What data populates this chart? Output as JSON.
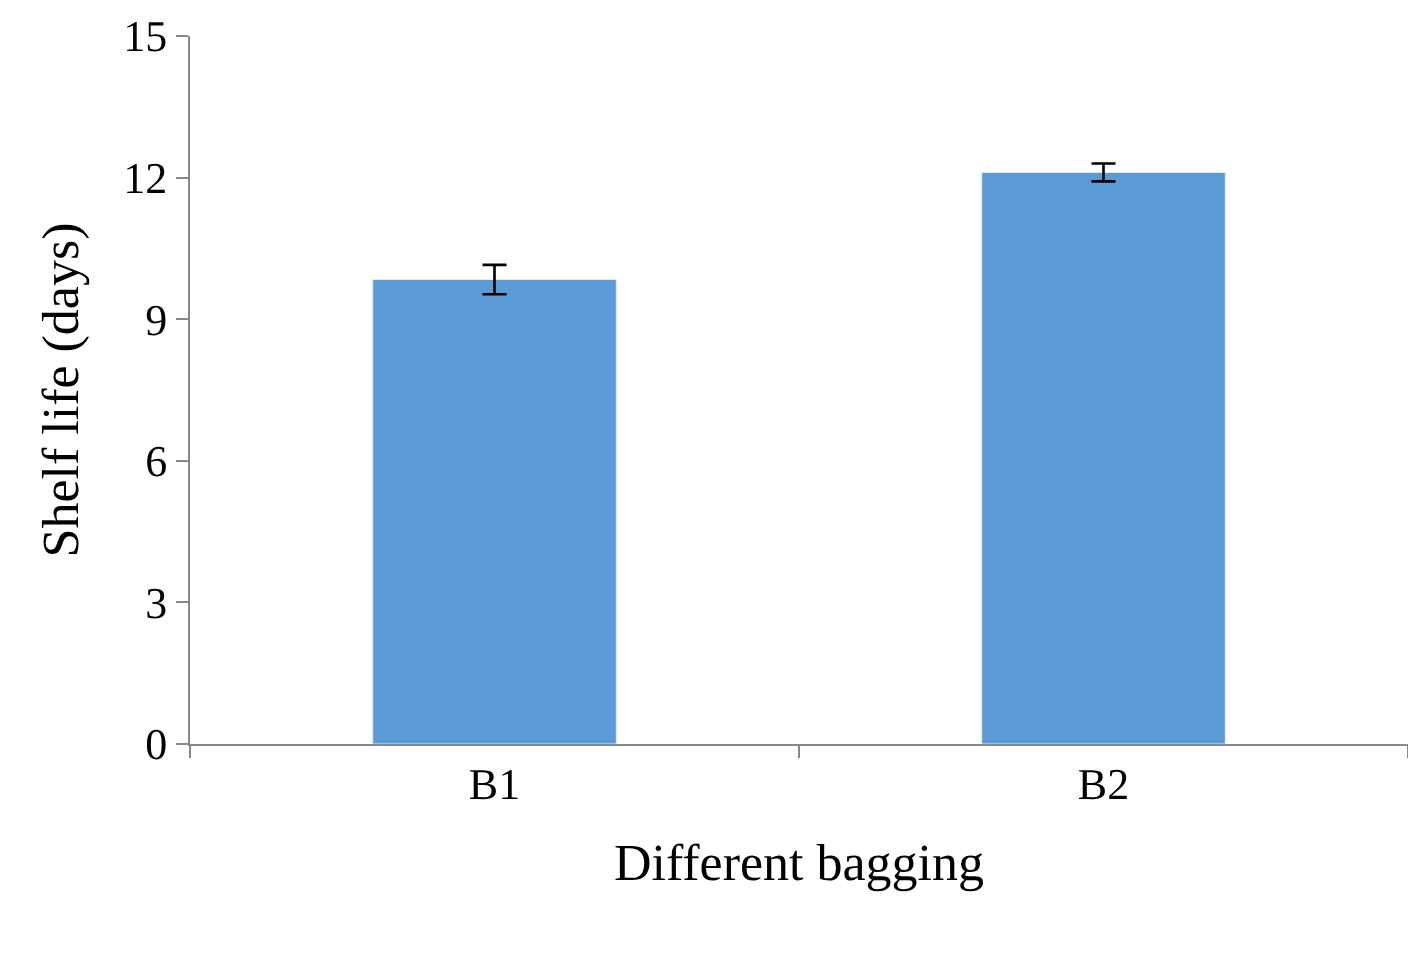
{
  "chart_data": {
    "type": "bar",
    "xlabel": "Different bagging",
    "ylabel": "Shelf life (days)",
    "categories": [
      "B1",
      "B2"
    ],
    "series": [
      {
        "color": "#5b9bd5",
        "values": [
          9.84,
          12.11
        ],
        "errors": [
          0.31,
          0.19
        ]
      }
    ],
    "ylim": [
      0,
      15
    ],
    "yticks": [
      0,
      3,
      6,
      9,
      12,
      15
    ]
  }
}
